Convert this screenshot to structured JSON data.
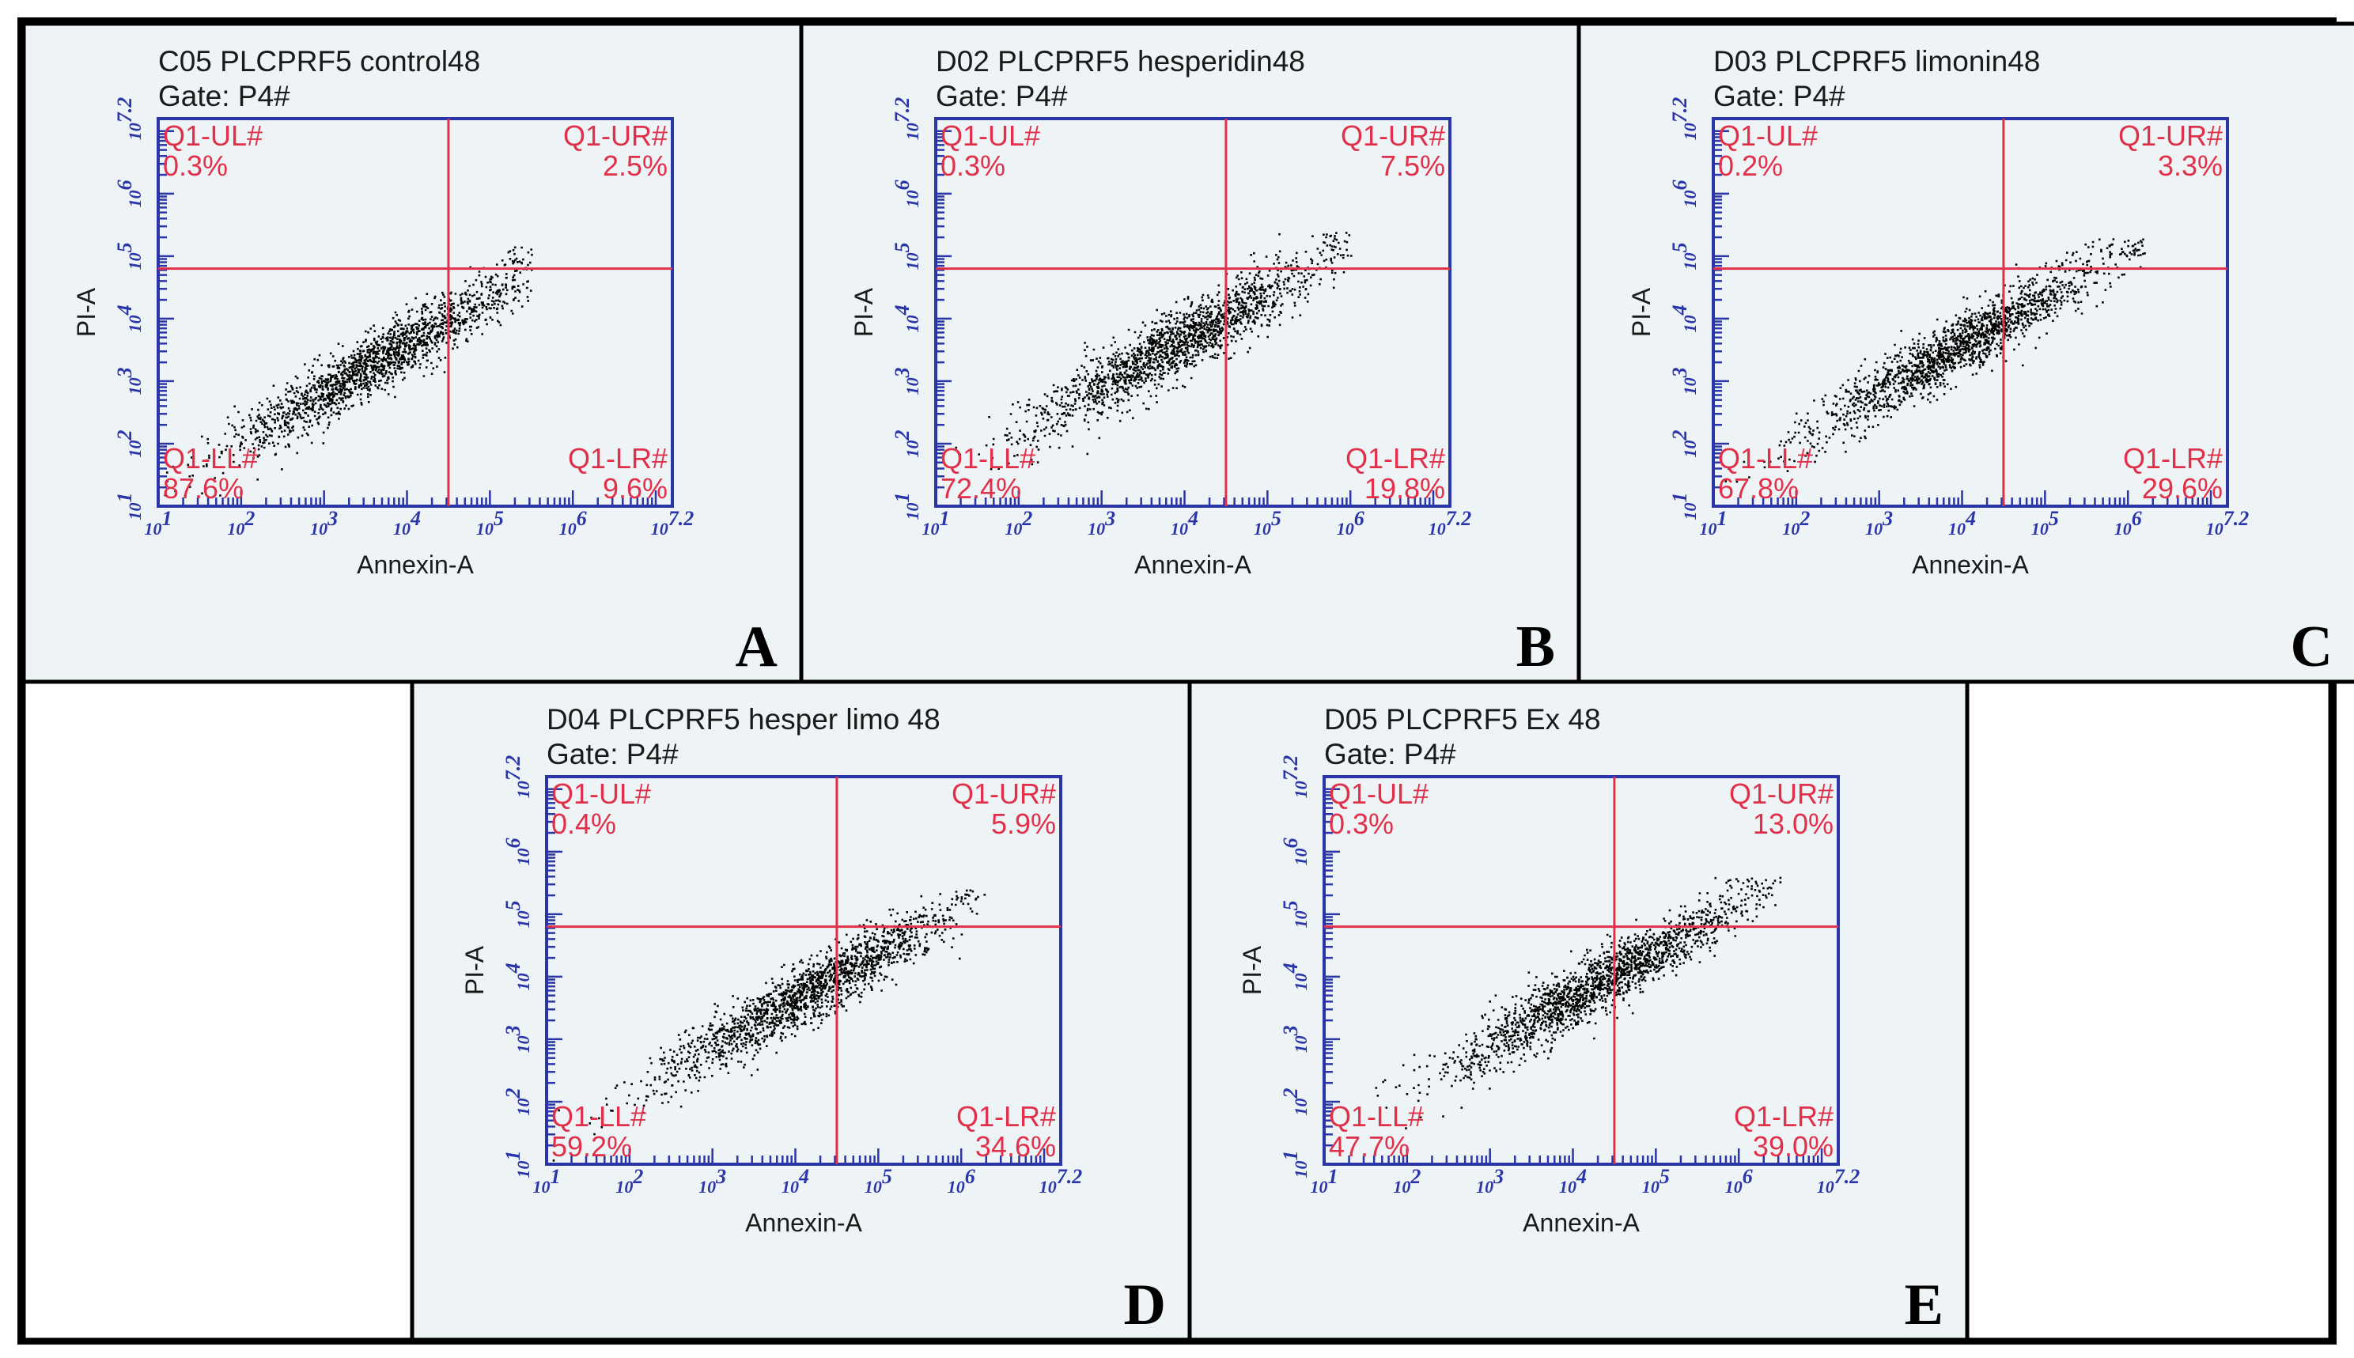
{
  "figure": {
    "colors": {
      "border": "#000000",
      "panel_bg": "#eef4f6",
      "axis": "#2a35a8",
      "quadrant": "#e0304a",
      "dots": "#000000",
      "text": "#1a1a1a"
    }
  },
  "chart_data": [
    {
      "panel_label": "A",
      "type": "scatter",
      "title": "C05 PLCPRF5 control48",
      "gate": "Gate: P4#",
      "xlabel": "Annexin-A",
      "ylabel": "PI-A",
      "x_scale": "log10",
      "y_scale": "log10",
      "xlim": [
        1,
        7.2
      ],
      "ylim": [
        1,
        7.2
      ],
      "x_ticks": [
        {
          "base": "10",
          "exp": "1"
        },
        {
          "base": "10",
          "exp": "2"
        },
        {
          "base": "10",
          "exp": "3"
        },
        {
          "base": "10",
          "exp": "4"
        },
        {
          "base": "10",
          "exp": "5"
        },
        {
          "base": "10",
          "exp": "6"
        },
        {
          "base": "10",
          "exp": "7.2"
        }
      ],
      "y_ticks": [
        {
          "base": "10",
          "exp": "1"
        },
        {
          "base": "10",
          "exp": "2"
        },
        {
          "base": "10",
          "exp": "3"
        },
        {
          "base": "10",
          "exp": "4"
        },
        {
          "base": "10",
          "exp": "5"
        },
        {
          "base": "10",
          "exp": "6"
        },
        {
          "base": "10",
          "exp": "7.2"
        }
      ],
      "gate_x": 4.5,
      "gate_y": 4.8,
      "quadrants": [
        {
          "name": "Q1-UL#",
          "value": "0.3%",
          "position": "top-left"
        },
        {
          "name": "Q1-UR#",
          "value": "2.5%",
          "position": "top-right"
        },
        {
          "name": "Q1-LL#",
          "value": "87.6%",
          "position": "bottom-left"
        },
        {
          "name": "Q1-LR#",
          "value": "9.6%",
          "position": "bottom-right"
        }
      ],
      "population": {
        "x_center": 3.6,
        "y_center": 3.3,
        "max_x": 5.5,
        "max_y": 5.2,
        "n": 1700,
        "spread": 0.55
      }
    },
    {
      "panel_label": "B",
      "type": "scatter",
      "title": "D02 PLCPRF5 hesperidin48",
      "gate": "Gate: P4#",
      "xlabel": "Annexin-A",
      "ylabel": "PI-A",
      "x_scale": "log10",
      "y_scale": "log10",
      "xlim": [
        1,
        7.2
      ],
      "ylim": [
        1,
        7.2
      ],
      "x_ticks": [
        {
          "base": "10",
          "exp": "1"
        },
        {
          "base": "10",
          "exp": "2"
        },
        {
          "base": "10",
          "exp": "3"
        },
        {
          "base": "10",
          "exp": "4"
        },
        {
          "base": "10",
          "exp": "5"
        },
        {
          "base": "10",
          "exp": "6"
        },
        {
          "base": "10",
          "exp": "7.2"
        }
      ],
      "y_ticks": [
        {
          "base": "10",
          "exp": "1"
        },
        {
          "base": "10",
          "exp": "2"
        },
        {
          "base": "10",
          "exp": "3"
        },
        {
          "base": "10",
          "exp": "4"
        },
        {
          "base": "10",
          "exp": "5"
        },
        {
          "base": "10",
          "exp": "6"
        },
        {
          "base": "10",
          "exp": "7.2"
        }
      ],
      "gate_x": 4.5,
      "gate_y": 4.8,
      "quadrants": [
        {
          "name": "Q1-UL#",
          "value": "0.3%",
          "position": "top-left"
        },
        {
          "name": "Q1-UR#",
          "value": "7.5%",
          "position": "top-right"
        },
        {
          "name": "Q1-LL#",
          "value": "72.4%",
          "position": "bottom-left"
        },
        {
          "name": "Q1-LR#",
          "value": "19.8%",
          "position": "bottom-right"
        }
      ],
      "population": {
        "x_center": 3.9,
        "y_center": 3.6,
        "max_x": 6.0,
        "max_y": 5.4,
        "n": 1700,
        "spread": 0.6
      }
    },
    {
      "panel_label": "C",
      "type": "scatter",
      "title": "D03 PLCPRF5 limonin48",
      "gate": "Gate: P4#",
      "xlabel": "Annexin-A",
      "ylabel": "PI-A",
      "x_scale": "log10",
      "y_scale": "log10",
      "xlim": [
        1,
        7.2
      ],
      "ylim": [
        1,
        7.2
      ],
      "x_ticks": [
        {
          "base": "10",
          "exp": "1"
        },
        {
          "base": "10",
          "exp": "2"
        },
        {
          "base": "10",
          "exp": "3"
        },
        {
          "base": "10",
          "exp": "4"
        },
        {
          "base": "10",
          "exp": "5"
        },
        {
          "base": "10",
          "exp": "6"
        },
        {
          "base": "10",
          "exp": "7.2"
        }
      ],
      "y_ticks": [
        {
          "base": "10",
          "exp": "1"
        },
        {
          "base": "10",
          "exp": "2"
        },
        {
          "base": "10",
          "exp": "3"
        },
        {
          "base": "10",
          "exp": "4"
        },
        {
          "base": "10",
          "exp": "5"
        },
        {
          "base": "10",
          "exp": "6"
        },
        {
          "base": "10",
          "exp": "7.2"
        }
      ],
      "gate_x": 4.5,
      "gate_y": 4.8,
      "quadrants": [
        {
          "name": "Q1-UL#",
          "value": "0.2%",
          "position": "top-left"
        },
        {
          "name": "Q1-UR#",
          "value": "3.3%",
          "position": "top-right"
        },
        {
          "name": "Q1-LL#",
          "value": "67.8%",
          "position": "bottom-left"
        },
        {
          "name": "Q1-LR#",
          "value": "29.6%",
          "position": "bottom-right"
        }
      ],
      "population": {
        "x_center": 4.0,
        "y_center": 3.6,
        "max_x": 6.2,
        "max_y": 5.3,
        "n": 1700,
        "spread": 0.55
      }
    },
    {
      "panel_label": "D",
      "type": "scatter",
      "title": "D04 PLCPRF5 hesper limo 48",
      "gate": "Gate: P4#",
      "xlabel": "Annexin-A",
      "ylabel": "PI-A",
      "x_scale": "log10",
      "y_scale": "log10",
      "xlim": [
        1,
        7.2
      ],
      "ylim": [
        1,
        7.2
      ],
      "x_ticks": [
        {
          "base": "10",
          "exp": "1"
        },
        {
          "base": "10",
          "exp": "2"
        },
        {
          "base": "10",
          "exp": "3"
        },
        {
          "base": "10",
          "exp": "4"
        },
        {
          "base": "10",
          "exp": "5"
        },
        {
          "base": "10",
          "exp": "6"
        },
        {
          "base": "10",
          "exp": "7.2"
        }
      ],
      "y_ticks": [
        {
          "base": "10",
          "exp": "1"
        },
        {
          "base": "10",
          "exp": "2"
        },
        {
          "base": "10",
          "exp": "3"
        },
        {
          "base": "10",
          "exp": "4"
        },
        {
          "base": "10",
          "exp": "5"
        },
        {
          "base": "10",
          "exp": "6"
        },
        {
          "base": "10",
          "exp": "7.2"
        }
      ],
      "gate_x": 4.5,
      "gate_y": 4.8,
      "quadrants": [
        {
          "name": "Q1-UL#",
          "value": "0.4%",
          "position": "top-left"
        },
        {
          "name": "Q1-UR#",
          "value": "5.9%",
          "position": "top-right"
        },
        {
          "name": "Q1-LL#",
          "value": "59.2%",
          "position": "bottom-left"
        },
        {
          "name": "Q1-LR#",
          "value": "34.6%",
          "position": "bottom-right"
        }
      ],
      "population": {
        "x_center": 4.2,
        "y_center": 3.8,
        "max_x": 6.3,
        "max_y": 5.4,
        "n": 1700,
        "spread": 0.55
      }
    },
    {
      "panel_label": "E",
      "type": "scatter",
      "title": "D05 PLCPRF5 Ex 48",
      "gate": "Gate: P4#",
      "xlabel": "Annexin-A",
      "ylabel": "PI-A",
      "x_scale": "log10",
      "y_scale": "log10",
      "xlim": [
        1,
        7.2
      ],
      "ylim": [
        1,
        7.2
      ],
      "x_ticks": [
        {
          "base": "10",
          "exp": "1"
        },
        {
          "base": "10",
          "exp": "2"
        },
        {
          "base": "10",
          "exp": "3"
        },
        {
          "base": "10",
          "exp": "4"
        },
        {
          "base": "10",
          "exp": "5"
        },
        {
          "base": "10",
          "exp": "6"
        },
        {
          "base": "10",
          "exp": "7.2"
        }
      ],
      "y_ticks": [
        {
          "base": "10",
          "exp": "1"
        },
        {
          "base": "10",
          "exp": "2"
        },
        {
          "base": "10",
          "exp": "3"
        },
        {
          "base": "10",
          "exp": "4"
        },
        {
          "base": "10",
          "exp": "5"
        },
        {
          "base": "10",
          "exp": "6"
        },
        {
          "base": "10",
          "exp": "7.2"
        }
      ],
      "gate_x": 4.5,
      "gate_y": 4.8,
      "quadrants": [
        {
          "name": "Q1-UL#",
          "value": "0.3%",
          "position": "top-left"
        },
        {
          "name": "Q1-UR#",
          "value": "13.0%",
          "position": "top-right"
        },
        {
          "name": "Q1-LL#",
          "value": "47.7%",
          "position": "bottom-left"
        },
        {
          "name": "Q1-LR#",
          "value": "39.0%",
          "position": "bottom-right"
        }
      ],
      "population": {
        "x_center": 4.3,
        "y_center": 3.9,
        "max_x": 6.5,
        "max_y": 5.6,
        "n": 1800,
        "spread": 0.55
      }
    }
  ]
}
